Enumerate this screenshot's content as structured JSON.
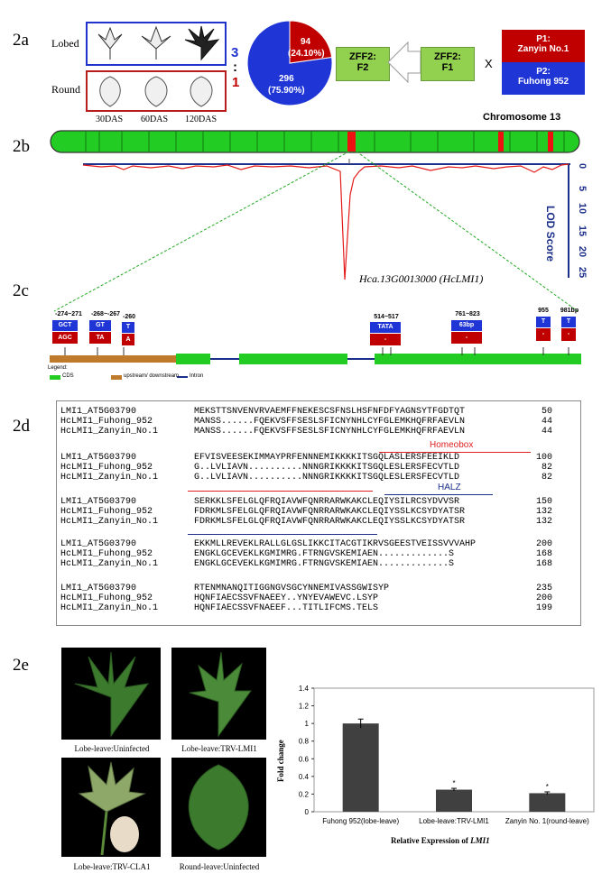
{
  "labels": {
    "a": "2a",
    "b": "2b",
    "c": "2c",
    "d": "2d",
    "e": "2e"
  },
  "panel_a": {
    "row_lobed": "Lobed",
    "row_round": "Round",
    "ratio_top": "3",
    "ratio_sep": ":",
    "ratio_bottom": "1",
    "stages": [
      "30DAS",
      "60DAS",
      "120DAS"
    ],
    "pie": {
      "lobed_count": "296",
      "lobed_pct": "(75.90%)",
      "round_count": "94",
      "round_pct": "(24.10%)",
      "lobed_fraction": 0.759,
      "lobed_color": "#1f35d6",
      "round_color": "#c00000"
    },
    "f2_box": [
      "ZFF2:",
      "F2"
    ],
    "f1_box": [
      "ZFF2:",
      "F1"
    ],
    "cross": "X",
    "p1": [
      "P1:",
      "Zanyin No.1"
    ],
    "p2": [
      "P2:",
      "Fuhong 952"
    ]
  },
  "panel_b": {
    "chromosome": "Chromosome 13",
    "lod_axis": "LOD Score",
    "lod_ticks": [
      "0",
      "5",
      "10",
      "15",
      "20",
      "25"
    ],
    "gene": "Hca.13G0013000 (HcLMI1)"
  },
  "panel_c": {
    "markers": [
      {
        "pos": "-274~271",
        "top": "GCT",
        "bottom": "AGC"
      },
      {
        "pos": "-268~-267",
        "top": "GT",
        "bottom": "TA"
      },
      {
        "pos": "-260",
        "top": "T",
        "bottom": "A"
      },
      {
        "pos": "514~517",
        "top": "TATA",
        "bottom": "-"
      },
      {
        "pos": "761~823",
        "top": "63bp",
        "bottom": "-"
      },
      {
        "pos": "955",
        "top": "T",
        "bottom": "-"
      },
      {
        "pos": "981bp",
        "top": "T",
        "bottom": "-"
      }
    ],
    "legend_title": "Legend:",
    "legend_items": [
      "CDS",
      "upstream/ downstream",
      "Intron"
    ]
  },
  "panel_d": {
    "blocks": [
      {
        "rows": [
          {
            "name": "LMI1_AT5G03790",
            "seq": "MEKSTTSNVENVRVAEMFFNEKESCSFNSLHSFNFDFYAGNSYTFGDTQT",
            "num": "50"
          },
          {
            "name": "HcLMI1_Fuhong_952",
            "seq": "MANSS......FQEKVSFFSESLSFICNYNHLCYFGLEMKHQFRFAEVLN",
            "num": "44"
          },
          {
            "name": "HcLMI1_Zanyin_No.1",
            "seq": "MANSS......FQEKVSFFSESLSFICNYNHLCYFGLEMKHQFRFAEVLN",
            "num": "44"
          }
        ]
      },
      {
        "annotation": "Homeobox",
        "rows": [
          {
            "name": "LMI1_AT5G03790",
            "seq": "EFVISVEESEKIMMAYPRFENNNEMIKKKKITSGQLASLERSFEEIKLD",
            "num": "100"
          },
          {
            "name": "HcLMI1_Fuhong_952",
            "seq": "G..LVLIAVN..........NNNGRIKKKKITSGQLESLERSFECVTLD",
            "num": "82"
          },
          {
            "name": "HcLMI1_Zanyin_No.1",
            "seq": "G..LVLIAVN..........NNNGRIKKKKITSGQLESLERSFECVTLD",
            "num": "82"
          }
        ]
      },
      {
        "annotation": "HALZ",
        "rows": [
          {
            "name": "LMI1_AT5G03790",
            "seq": "SERKKLSFELGLQFRQIAVWFQNRRARWKAKCLEQIYSILRCSYDVVSR",
            "num": "150"
          },
          {
            "name": "HcLMI1_Fuhong_952",
            "seq": "FDRKMLSFELGLQFRQIAVWFQNRRARWKAKCLEQIYSSLKCSYDYATSR",
            "num": "132"
          },
          {
            "name": "HcLMI1_Zanyin_No.1",
            "seq": "FDRKMLSFELGLQFRQIAVWFQNRRARWKAKCLEQIYSSLKCSYDYATSR",
            "num": "132"
          }
        ]
      },
      {
        "rows": [
          {
            "name": "LMI1_AT5G03790",
            "seq": "EKKMLLREVEKLRALLGLGSLIKKCITACGTIKRVSGEESTVEISSVVVAHP",
            "num": "200"
          },
          {
            "name": "HcLMI1_Fuhong_952",
            "seq": "ENGKLGCEVEKLKGMIMRG.FTRNGVSKEMIAEN.............S",
            "num": "168"
          },
          {
            "name": "HcLMI1_Zanyin_No.1",
            "seq": "ENGKLGCEVEKLKGMIMRG.FTRNGVSKEMIAEN.............S",
            "num": "168"
          }
        ]
      },
      {
        "rows": [
          {
            "name": "LMI1_AT5G03790",
            "seq": "RTENMNANQITIGGNGVSGCYNNEMIVASSGWISYP",
            "num": "235"
          },
          {
            "name": "HcLMI1_Fuhong_952",
            "seq": "HQNFIAECSSVFNAEEY..YNYEVAWEVC.LSYP",
            "num": "200"
          },
          {
            "name": "HcLMI1_Zanyin_No.1",
            "seq": "HQNFIAECSSVFNAEEF...TITLIFCMS.TELS",
            "num": "199"
          }
        ]
      }
    ]
  },
  "panel_e": {
    "photos": [
      "Lobe-leave:Uninfected",
      "Lobe-leave:TRV-LMI1",
      "Lobe-leave:TRV-CLA1",
      "Round-leave:Uninfected"
    ],
    "chart_data": {
      "type": "bar",
      "categories": [
        "Fuhong 952(lobe-leave)",
        "Lobe-leave:TRV-LMI1",
        "Zanyin No. 1(round-leave)"
      ],
      "values": [
        1.0,
        0.25,
        0.21
      ],
      "errors": [
        0.05,
        0.015,
        0.015
      ],
      "significance": [
        "",
        "*",
        "*"
      ],
      "ylabel": "Fold change",
      "xlabel_prefix": "Relative Expression of ",
      "xlabel_gene": "LMI1",
      "ylim": [
        0,
        1.4
      ],
      "yticks": [
        "0",
        "0.2",
        "0.4",
        "0.6",
        "0.8",
        "1",
        "1.2",
        "1.4"
      ],
      "bar_color": "#404040"
    }
  }
}
